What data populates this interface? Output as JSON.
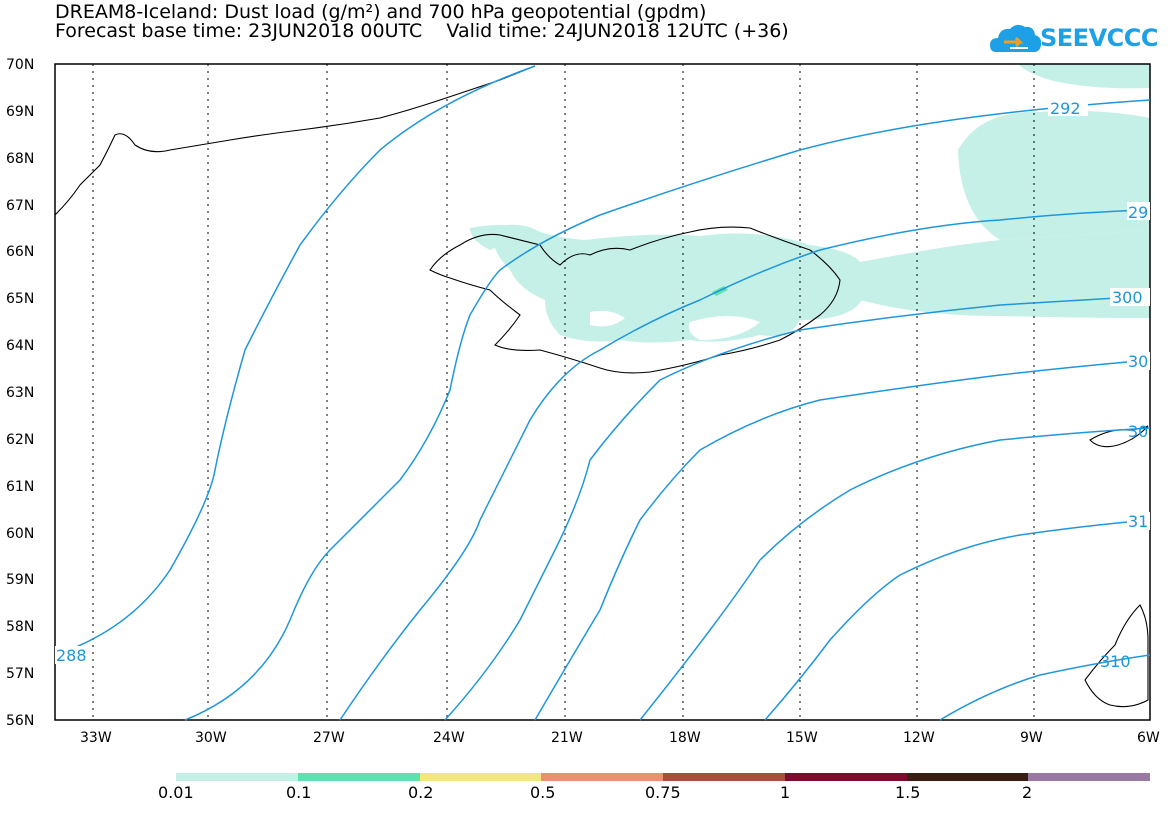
{
  "header": {
    "title_line1": "DREAM8-Iceland: Dust load (g/m²) and 700 hPa geopotential (gpdm)",
    "title_line2": "Forecast base time: 23JUN2018 00UTC    Valid time: 24JUN2018 12UTC (+36)"
  },
  "logo": {
    "text": "SEEVCCC",
    "icon": "cloud-icon",
    "color": "#1ea0e6"
  },
  "axes": {
    "lat_labels": [
      "70N",
      "69N",
      "68N",
      "67N",
      "66N",
      "65N",
      "64N",
      "63N",
      "62N",
      "61N",
      "60N",
      "59N",
      "58N",
      "57N",
      "56N"
    ],
    "lon_labels": [
      "33W",
      "30W",
      "27W",
      "24W",
      "21W",
      "18W",
      "15W",
      "12W",
      "9W",
      "6W"
    ]
  },
  "contours": {
    "color": "#1e96dc",
    "labels": [
      "288",
      "292",
      "29",
      "300",
      "30",
      "30",
      "31",
      "310"
    ]
  },
  "dust_fill_color": "#c4f0e8",
  "colorbar": {
    "colors": [
      "#c4f0e8",
      "#5ee0b0",
      "#f2e680",
      "#eb9070",
      "#a84e3c",
      "#7e0a2c",
      "#3a1e14",
      "#9a78a4"
    ],
    "labels": [
      "0.01",
      "0.1",
      "0.2",
      "0.5",
      "0.75",
      "1",
      "1.5",
      "2"
    ]
  }
}
